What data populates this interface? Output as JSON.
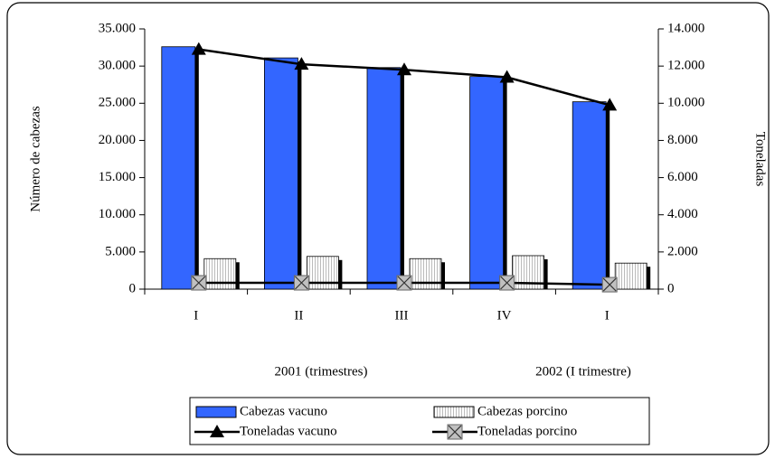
{
  "chart_data": {
    "type": "bar_line",
    "categories": [
      "I",
      "II",
      "III",
      "IV",
      "I"
    ],
    "category_groups": [
      "2001 (trimestres)",
      "2002 (I trimestre)"
    ],
    "ylabel": "Número de cabezas",
    "y2label": "Toneladas",
    "ylim": [
      0,
      35000
    ],
    "yticks": [
      {
        "value": 0,
        "label": "0"
      },
      {
        "value": 5000,
        "label": "5.000"
      },
      {
        "value": 10000,
        "label": "10.000"
      },
      {
        "value": 15000,
        "label": "15.000"
      },
      {
        "value": 20000,
        "label": "20.000"
      },
      {
        "value": 25000,
        "label": "25.000"
      },
      {
        "value": 30000,
        "label": "30.000"
      },
      {
        "value": 35000,
        "label": "35.000"
      }
    ],
    "y2lim": [
      0,
      14000
    ],
    "y2ticks": [
      {
        "value": 0,
        "label": "0"
      },
      {
        "value": 2000,
        "label": "2.000"
      },
      {
        "value": 4000,
        "label": "4.000"
      },
      {
        "value": 6000,
        "label": "6.000"
      },
      {
        "value": 8000,
        "label": "8.000"
      },
      {
        "value": 10000,
        "label": "10.000"
      },
      {
        "value": 12000,
        "label": "12.000"
      },
      {
        "value": 14000,
        "label": "14.000"
      }
    ],
    "series": [
      {
        "name": "Cabezas vacuno",
        "kind": "bar",
        "color": "#3366ff",
        "values": [
          32600,
          31100,
          29800,
          28600,
          25200
        ]
      },
      {
        "name": "Cabezas porcino",
        "kind": "bar",
        "color": "#ffffff",
        "values": [
          4100,
          4400,
          4100,
          4500,
          3500
        ]
      },
      {
        "name": "Toneladas vacuno",
        "kind": "line",
        "axis": "y2",
        "color": "#000000",
        "marker": "triangle",
        "values": [
          12900,
          12100,
          11800,
          11400,
          9900
        ]
      },
      {
        "name": "Toneladas porcino",
        "kind": "line",
        "axis": "y2",
        "color": "#000000",
        "marker": "x",
        "values": [
          340,
          340,
          340,
          340,
          240
        ]
      }
    ]
  }
}
